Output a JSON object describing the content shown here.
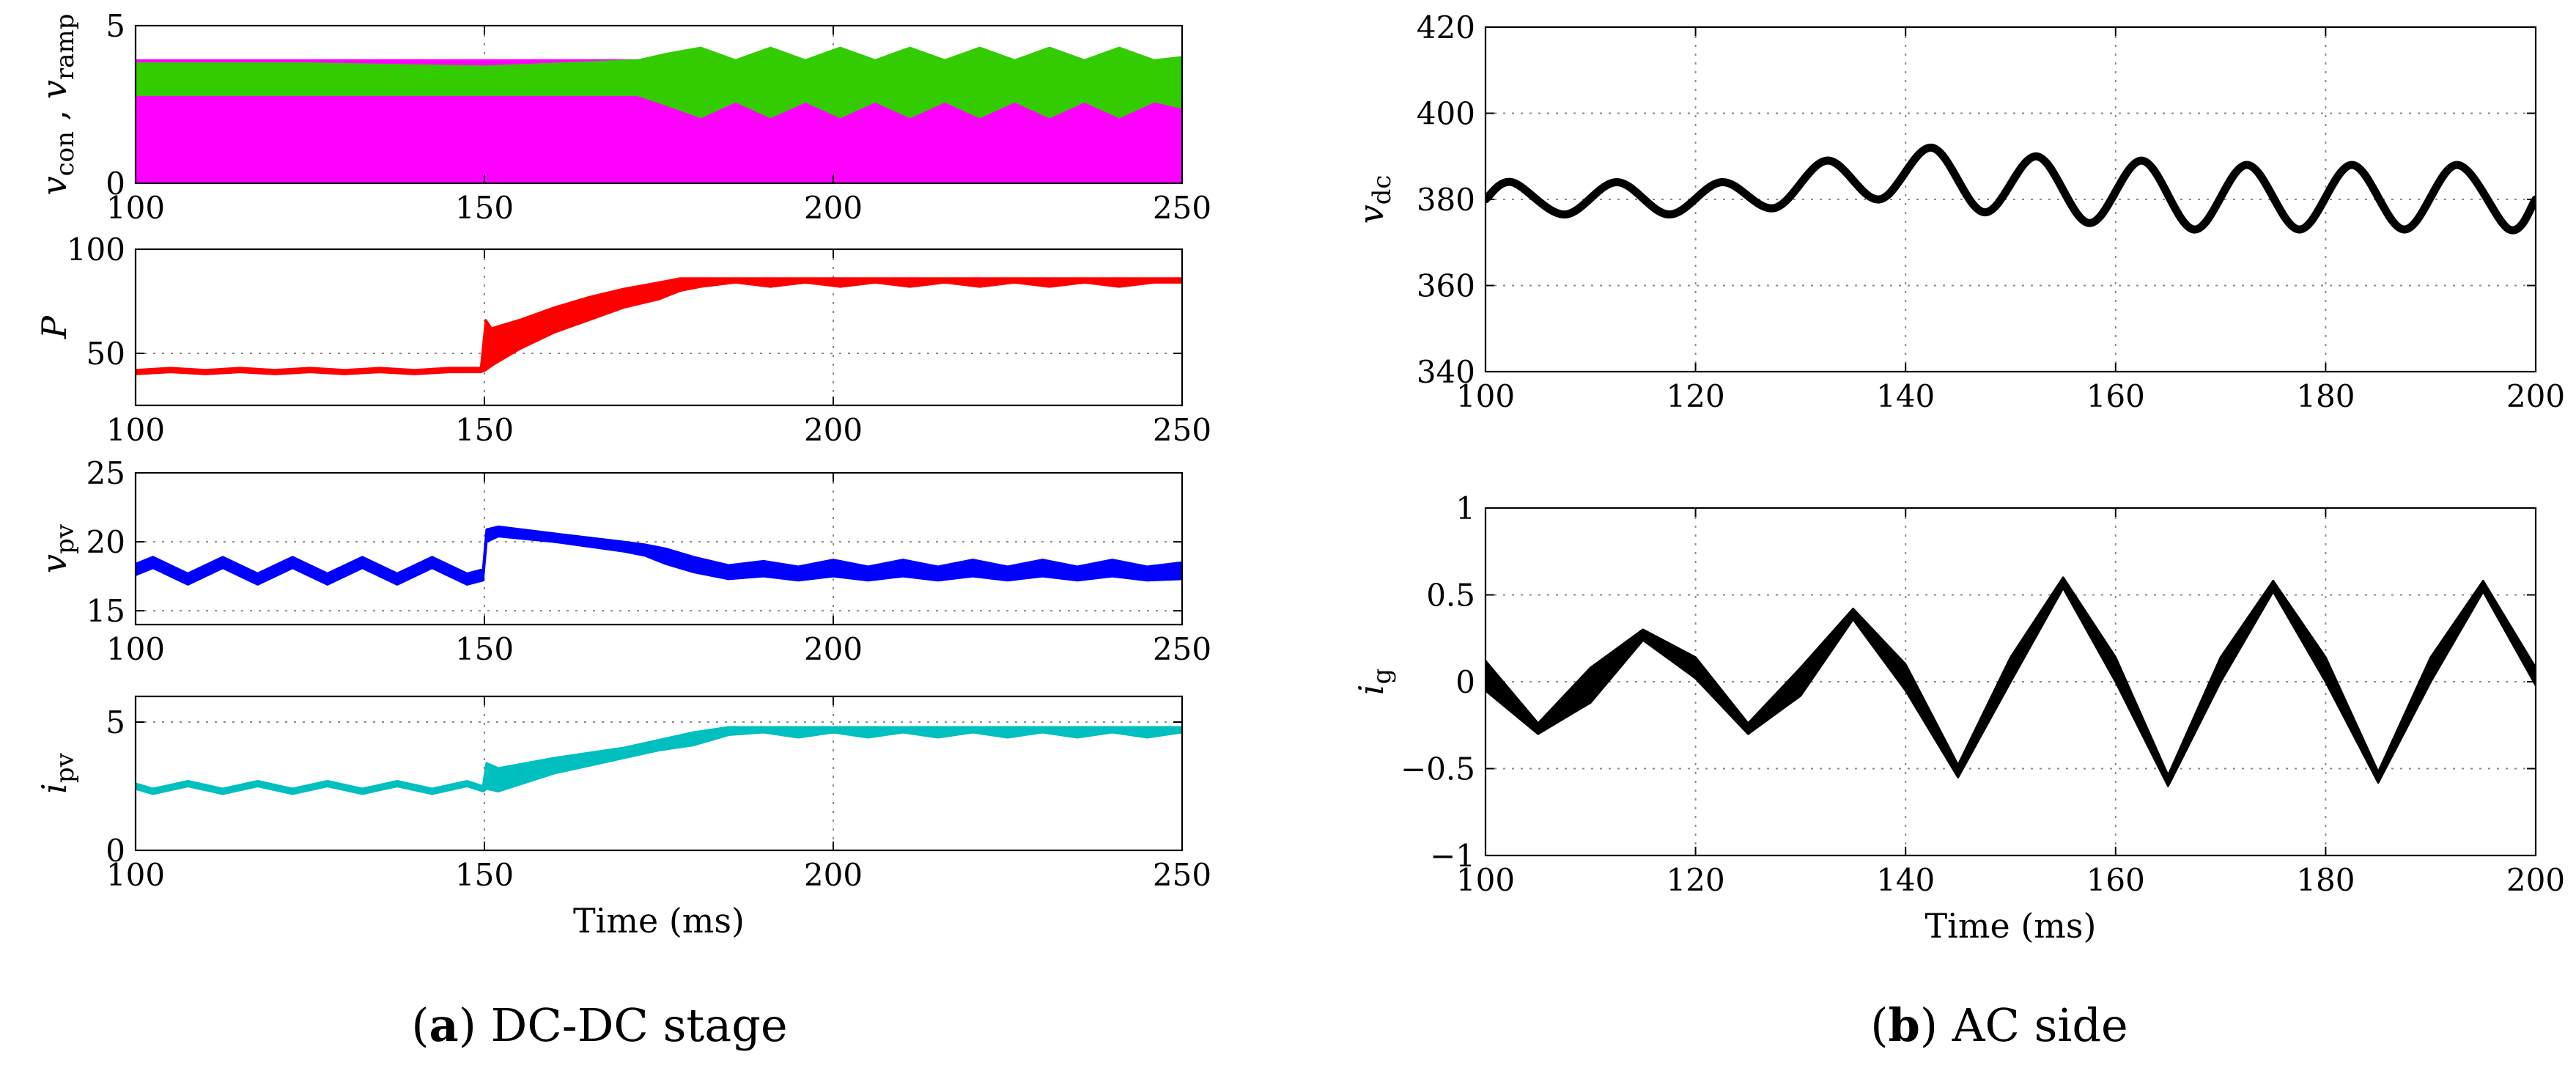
{
  "captions": {
    "a": {
      "label": "a",
      "text": "DC-DC stage"
    },
    "b": {
      "label": "b",
      "text": "AC side"
    }
  },
  "chart_data": [
    {
      "id": "a1",
      "type": "line",
      "ylabel": {
        "main": "v",
        "sub": "con",
        "sep": " , ",
        "main2": "v",
        "sub2": "ramp"
      },
      "xlabel": "",
      "xlim": [
        100,
        250
      ],
      "ylim": [
        0,
        5
      ],
      "xticks": [
        100,
        150,
        200,
        250
      ],
      "yticks": [
        0,
        5
      ],
      "grid": true,
      "series": [
        {
          "name": "v_ramp",
          "color": "#ff00ff",
          "band": {
            "x": [
              100,
              250
            ],
            "lower": [
              0,
              0
            ],
            "upper": [
              3.9,
              3.9
            ]
          }
        },
        {
          "name": "v_con",
          "color": "#33cc00",
          "band": {
            "x": [
              100,
              125,
              150,
              172,
              176,
              181,
              186,
              191,
              196,
              201,
              206,
              211,
              216,
              221,
              226,
              231,
              236,
              241,
              246,
              250
            ],
            "lower": [
              2.8,
              2.8,
              2.8,
              2.8,
              2.5,
              2.1,
              2.6,
              2.1,
              2.6,
              2.1,
              2.6,
              2.1,
              2.6,
              2.1,
              2.6,
              2.1,
              2.6,
              2.1,
              2.6,
              2.4
            ],
            "upper": [
              3.8,
              3.8,
              3.7,
              3.9,
              4.1,
              4.3,
              3.9,
              4.3,
              3.9,
              4.3,
              3.9,
              4.3,
              3.9,
              4.3,
              3.9,
              4.3,
              3.9,
              4.3,
              3.9,
              4.0
            ]
          }
        }
      ]
    },
    {
      "id": "a2",
      "type": "line",
      "ylabel": {
        "main": "P"
      },
      "xlabel": "",
      "xlim": [
        100,
        250
      ],
      "ylim": [
        25,
        100
      ],
      "xticks": [
        100,
        150,
        200,
        250
      ],
      "yticks": [
        50,
        100
      ],
      "grid": true,
      "series": [
        {
          "name": "P",
          "color": "#ff0000",
          "band": {
            "x": [
              100,
              105,
              110,
              115,
              120,
              125,
              130,
              135,
              140,
              145,
              149.5,
              150.2,
              151,
              155,
              160,
              165,
              170,
              175,
              178,
              181,
              186,
              191,
              196,
              201,
              206,
              211,
              216,
              221,
              226,
              231,
              236,
              241,
              246,
              250
            ],
            "lower": [
              40,
              41,
              40,
              41,
              40,
              41,
              40,
              41,
              40,
              41,
              41,
              42,
              44,
              52,
              60,
              66,
              72,
              76,
              80,
              82,
              84,
              82,
              84,
              82,
              84,
              82,
              84,
              82,
              84,
              82,
              84,
              82,
              84,
              84
            ],
            "upper": [
              42,
              43,
              42,
              43,
              42,
              43,
              42,
              43,
              42,
              43,
              43,
              66,
              62,
              66,
              72,
              77,
              81,
              84,
              86,
              86,
              86,
              86,
              86,
              86,
              86,
              86,
              86,
              86,
              86,
              86,
              86,
              86,
              86,
              86
            ]
          }
        }
      ]
    },
    {
      "id": "a3",
      "type": "line",
      "ylabel": {
        "main": "v",
        "sub": "pv"
      },
      "xlabel": "",
      "xlim": [
        100,
        250
      ],
      "ylim": [
        14,
        25
      ],
      "xticks": [
        100,
        150,
        200,
        250
      ],
      "yticks": [
        15,
        20,
        25
      ],
      "grid": true,
      "series": [
        {
          "name": "v_pv",
          "color": "#0000ff",
          "band": {
            "x": [
              100,
              102.5,
              107.5,
              112.5,
              117.5,
              122.5,
              127.5,
              132.5,
              137.5,
              142.5,
              147.5,
              149.8,
              150.3,
              152,
              160,
              170,
              173,
              176,
              180,
              185,
              190,
              195,
              200,
              205,
              210,
              215,
              220,
              225,
              230,
              235,
              240,
              245,
              250
            ],
            "lower": [
              17.6,
              18.1,
              16.9,
              18.1,
              16.9,
              18.1,
              16.9,
              18.1,
              16.9,
              18.1,
              16.9,
              17.2,
              20.0,
              20.4,
              20.0,
              19.3,
              19.0,
              18.4,
              17.8,
              17.3,
              17.5,
              17.2,
              17.5,
              17.2,
              17.5,
              17.2,
              17.5,
              17.2,
              17.5,
              17.2,
              17.5,
              17.2,
              17.3
            ],
            "upper": [
              18.4,
              18.9,
              17.7,
              18.9,
              17.7,
              18.9,
              17.7,
              18.9,
              17.7,
              18.9,
              17.7,
              18.0,
              20.9,
              21.1,
              20.6,
              20.0,
              19.8,
              19.5,
              18.9,
              18.3,
              18.6,
              18.2,
              18.7,
              18.2,
              18.7,
              18.2,
              18.7,
              18.2,
              18.7,
              18.2,
              18.7,
              18.2,
              18.5
            ]
          }
        }
      ]
    },
    {
      "id": "a4",
      "type": "line",
      "ylabel": {
        "main": "i",
        "sub": "pv"
      },
      "xlabel": "Time (ms)",
      "xlim": [
        100,
        250
      ],
      "ylim": [
        0,
        6
      ],
      "xticks": [
        100,
        150,
        200,
        250
      ],
      "yticks": [
        0,
        5
      ],
      "grid": true,
      "series": [
        {
          "name": "i_pv",
          "color": "#00bfbf",
          "band": {
            "x": [
              100,
              102.5,
              107.5,
              112.5,
              117.5,
              122.5,
              127.5,
              132.5,
              137.5,
              142.5,
              147.5,
              149.8,
              150.3,
              152,
              160,
              170,
              175,
              180,
              185,
              190,
              195,
              200,
              205,
              210,
              215,
              220,
              225,
              230,
              235,
              240,
              245,
              250
            ],
            "lower": [
              2.4,
              2.2,
              2.5,
              2.2,
              2.5,
              2.2,
              2.5,
              2.2,
              2.5,
              2.2,
              2.5,
              2.3,
              2.4,
              2.3,
              3.0,
              3.6,
              3.9,
              4.1,
              4.5,
              4.6,
              4.4,
              4.6,
              4.4,
              4.6,
              4.4,
              4.6,
              4.4,
              4.6,
              4.4,
              4.6,
              4.4,
              4.6
            ],
            "upper": [
              2.6,
              2.4,
              2.7,
              2.4,
              2.7,
              2.4,
              2.7,
              2.4,
              2.7,
              2.4,
              2.7,
              2.5,
              3.4,
              3.2,
              3.6,
              4.0,
              4.3,
              4.6,
              4.8,
              4.8,
              4.8,
              4.8,
              4.8,
              4.8,
              4.8,
              4.8,
              4.8,
              4.8,
              4.8,
              4.8,
              4.8,
              4.8
            ]
          }
        }
      ]
    },
    {
      "id": "b1",
      "type": "line",
      "ylabel": {
        "main": "v",
        "sub": "dc"
      },
      "xlabel": "",
      "xlim": [
        100,
        200
      ],
      "ylim": [
        340,
        420
      ],
      "xticks": [
        100,
        120,
        140,
        160,
        180,
        200
      ],
      "yticks": [
        340,
        360,
        380,
        400,
        420
      ],
      "grid": true,
      "series": [
        {
          "name": "v_dc",
          "color": "#000000",
          "line": {
            "x": [
              100,
              102.5,
              107.5,
              112.5,
              117.5,
              122.5,
              127.5,
              132.5,
              137.5,
              142.5,
              147.5,
              152.5,
              157.5,
              162.5,
              167.5,
              172.5,
              177.5,
              182.5,
              187.5,
              192.5,
              197.5,
              200
            ],
            "y": [
              380,
              384,
              376.5,
              384,
              376.5,
              384,
              378,
              389,
              380,
              392,
              377,
              390,
              374.5,
              389,
              373,
              388,
              373,
              388,
              373,
              388,
              373,
              380
            ]
          }
        }
      ]
    },
    {
      "id": "b2",
      "type": "line",
      "ylabel": {
        "main": "i",
        "sub": "g"
      },
      "xlabel": "Time (ms)",
      "xlim": [
        100,
        200
      ],
      "ylim": [
        -1,
        1
      ],
      "xticks": [
        100,
        120,
        140,
        160,
        180,
        200
      ],
      "yticks": [
        -1,
        -0.5,
        0,
        0.5,
        1
      ],
      "yticklabels": [
        "−1",
        "−0.5",
        "0",
        "0.5",
        "1"
      ],
      "grid": true,
      "series": [
        {
          "name": "i_g",
          "color": "#000000",
          "band": {
            "x": [
              100,
              105,
              110,
              115,
              120,
              125,
              130,
              135,
              140,
              145,
              150,
              155,
              160,
              165,
              170,
              175,
              180,
              185,
              190,
              195,
              200
            ],
            "lower": [
              -0.05,
              -0.3,
              -0.12,
              0.24,
              0.02,
              -0.3,
              -0.08,
              0.36,
              -0.05,
              -0.55,
              0.0,
              0.54,
              0.0,
              -0.6,
              0.0,
              0.52,
              0.0,
              -0.58,
              0.0,
              0.52,
              -0.02
            ],
            "upper": [
              0.12,
              -0.24,
              0.08,
              0.3,
              0.14,
              -0.24,
              0.08,
              0.42,
              0.1,
              -0.48,
              0.14,
              0.6,
              0.14,
              -0.54,
              0.14,
              0.58,
              0.14,
              -0.52,
              0.14,
              0.58,
              0.08
            ]
          }
        }
      ]
    }
  ]
}
